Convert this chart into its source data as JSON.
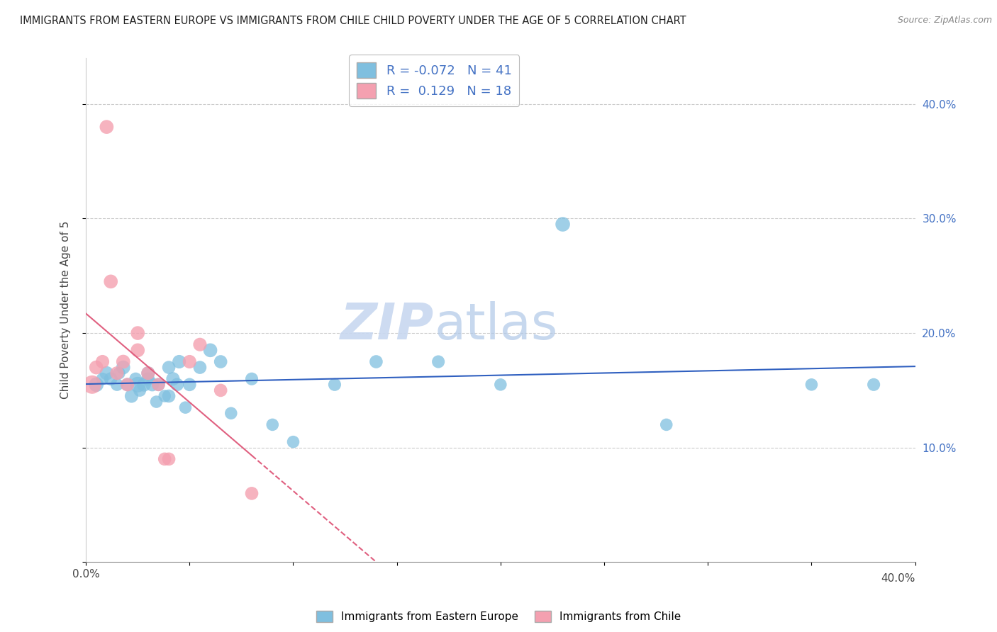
{
  "title": "IMMIGRANTS FROM EASTERN EUROPE VS IMMIGRANTS FROM CHILE CHILD POVERTY UNDER THE AGE OF 5 CORRELATION CHART",
  "source": "Source: ZipAtlas.com",
  "ylabel": "Child Poverty Under the Age of 5",
  "legend_label1": "Immigrants from Eastern Europe",
  "legend_label2": "Immigrants from Chile",
  "r1": -0.072,
  "n1": 41,
  "r2": 0.129,
  "n2": 18,
  "color_blue": "#7fbfdf",
  "color_pink": "#f4a0b0",
  "color_blue_line": "#3060c0",
  "color_pink_line": "#e06080",
  "watermark_zip": "ZIP",
  "watermark_atlas": "atlas",
  "xlim": [
    0.0,
    0.4
  ],
  "ylim": [
    0.0,
    0.44
  ],
  "yticks": [
    0.0,
    0.1,
    0.2,
    0.3,
    0.4
  ],
  "ytick_labels_right": [
    "",
    "10.0%",
    "20.0%",
    "30.0%",
    "40.0%"
  ],
  "xticks": [
    0.0,
    0.05,
    0.1,
    0.15,
    0.2,
    0.25,
    0.3,
    0.35,
    0.4
  ],
  "blue_x": [
    0.005,
    0.008,
    0.01,
    0.012,
    0.015,
    0.016,
    0.018,
    0.02,
    0.022,
    0.024,
    0.025,
    0.026,
    0.028,
    0.03,
    0.03,
    0.032,
    0.034,
    0.035,
    0.038,
    0.04,
    0.04,
    0.042,
    0.044,
    0.045,
    0.048,
    0.05,
    0.055,
    0.06,
    0.065,
    0.07,
    0.08,
    0.09,
    0.1,
    0.12,
    0.14,
    0.17,
    0.2,
    0.23,
    0.28,
    0.35,
    0.38
  ],
  "blue_y": [
    0.155,
    0.16,
    0.165,
    0.16,
    0.155,
    0.165,
    0.17,
    0.155,
    0.145,
    0.16,
    0.155,
    0.15,
    0.155,
    0.165,
    0.16,
    0.155,
    0.14,
    0.155,
    0.145,
    0.17,
    0.145,
    0.16,
    0.155,
    0.175,
    0.135,
    0.155,
    0.17,
    0.185,
    0.175,
    0.13,
    0.16,
    0.12,
    0.105,
    0.155,
    0.175,
    0.175,
    0.155,
    0.295,
    0.12,
    0.155,
    0.155
  ],
  "blue_sizes": [
    220,
    160,
    200,
    180,
    170,
    160,
    200,
    180,
    190,
    170,
    250,
    170,
    200,
    190,
    180,
    190,
    160,
    180,
    160,
    180,
    180,
    190,
    180,
    190,
    160,
    180,
    180,
    200,
    180,
    160,
    170,
    160,
    160,
    170,
    180,
    170,
    160,
    220,
    160,
    160,
    170
  ],
  "pink_x": [
    0.003,
    0.005,
    0.008,
    0.01,
    0.012,
    0.015,
    0.018,
    0.02,
    0.025,
    0.025,
    0.03,
    0.035,
    0.038,
    0.04,
    0.05,
    0.055,
    0.065,
    0.08
  ],
  "pink_y": [
    0.155,
    0.17,
    0.175,
    0.38,
    0.245,
    0.165,
    0.175,
    0.155,
    0.2,
    0.185,
    0.165,
    0.155,
    0.09,
    0.09,
    0.175,
    0.19,
    0.15,
    0.06
  ],
  "pink_sizes": [
    350,
    200,
    190,
    200,
    200,
    190,
    200,
    190,
    200,
    200,
    190,
    180,
    180,
    180,
    190,
    190,
    180,
    180
  ]
}
